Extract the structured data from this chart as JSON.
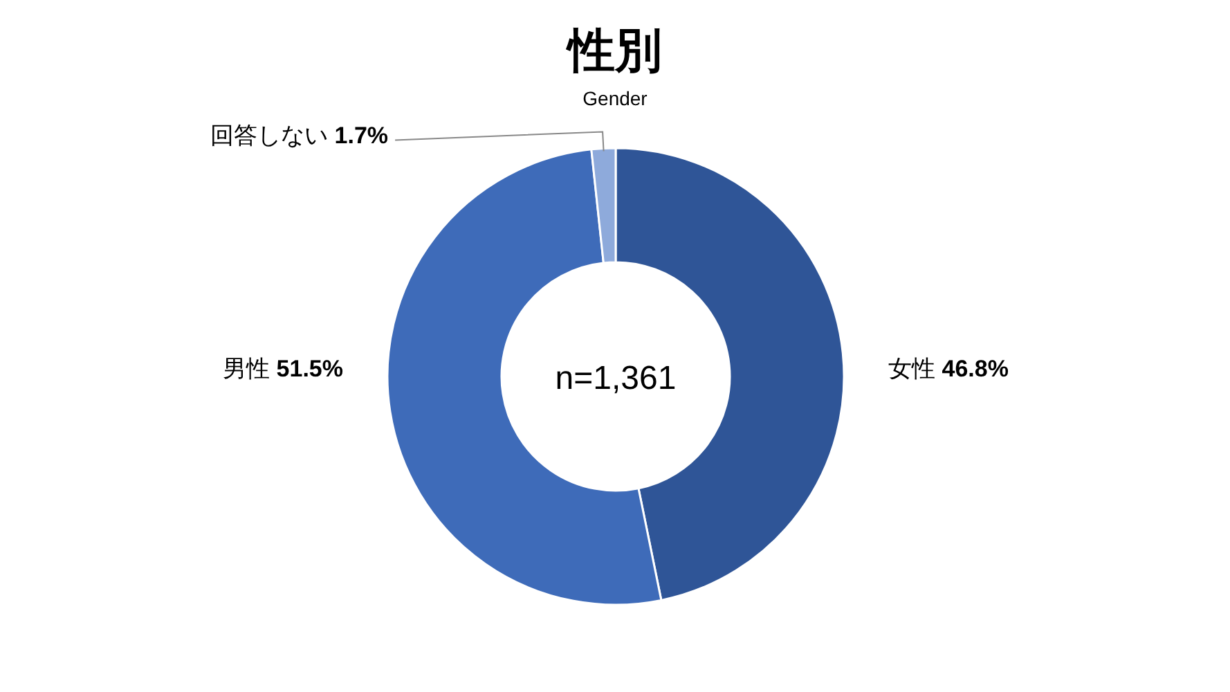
{
  "chart_data": {
    "type": "donut",
    "title": "性別",
    "subtitle": "Gender",
    "categories": [
      "女性",
      "男性",
      "回答しない"
    ],
    "values": [
      46.8,
      51.5,
      1.7
    ],
    "value_labels": [
      "46.8%",
      "51.5%",
      "1.7%"
    ],
    "colors": [
      "#2f5597",
      "#3e6bb9",
      "#8eaadb"
    ],
    "annotations": [
      "n=1,361"
    ]
  }
}
